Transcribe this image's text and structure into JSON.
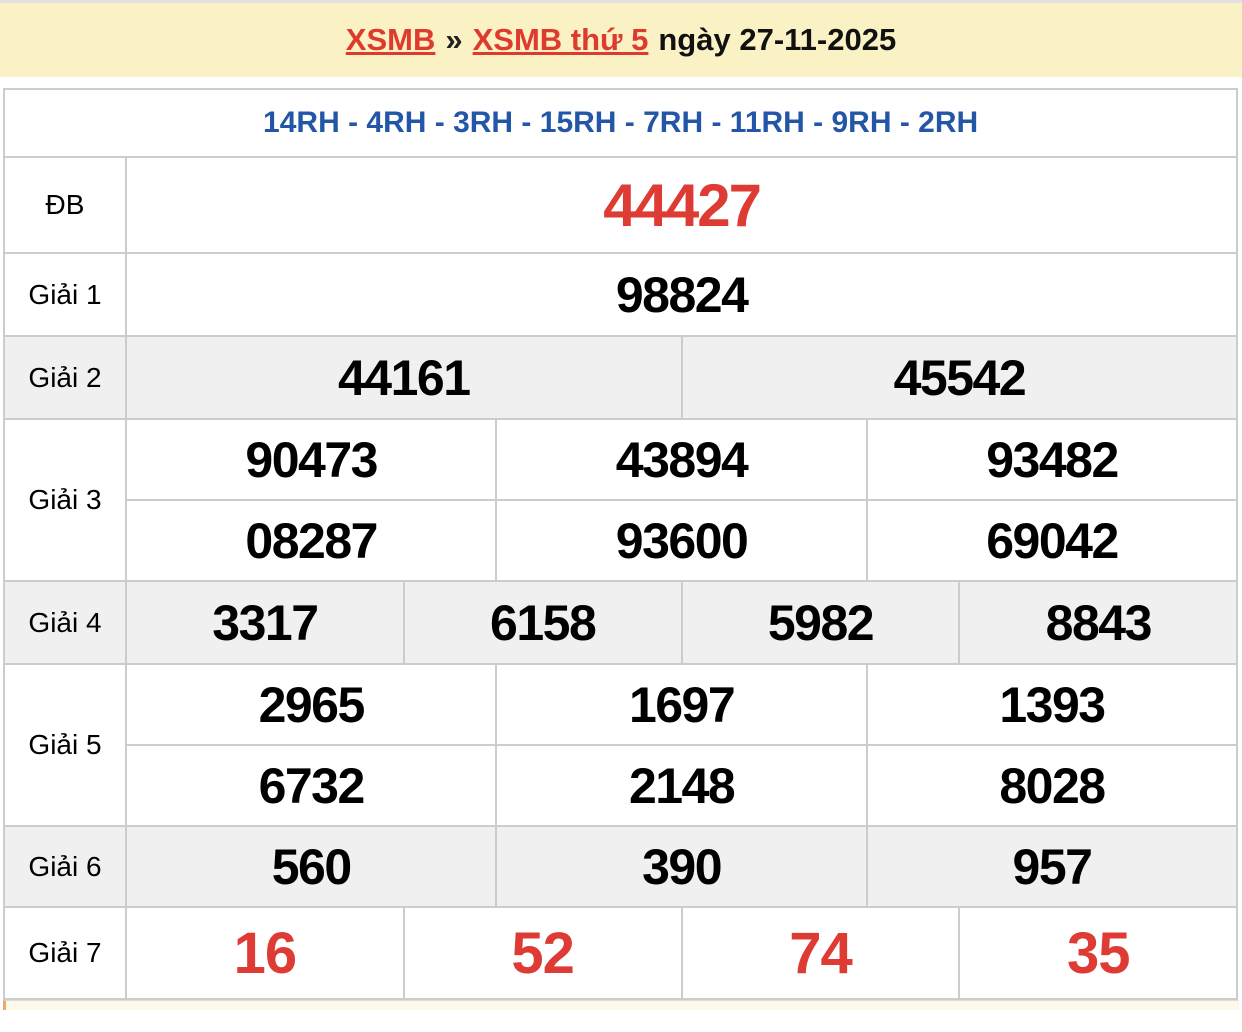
{
  "breadcrumb": {
    "link1": "XSMB",
    "separator": "»",
    "link2": "XSMB thứ 5",
    "date_text": "ngày 27-11-2025"
  },
  "codes_line": {
    "text": "14RH - 4RH - 3RH - 15RH - 7RH - 11RH - 9RH - 2RH"
  },
  "results": {
    "rows": [
      {
        "label": "ĐB",
        "values": [
          "44427"
        ]
      },
      {
        "label": "Giải 1",
        "values": [
          "98824"
        ]
      },
      {
        "label": "Giải 2",
        "values": [
          "44161",
          "45542"
        ]
      },
      {
        "label": "Giải 3",
        "values": [
          "90473",
          "43894",
          "93482",
          "08287",
          "93600",
          "69042"
        ]
      },
      {
        "label": "Giải 4",
        "values": [
          "3317",
          "6158",
          "5982",
          "8843"
        ]
      },
      {
        "label": "Giải 5",
        "values": [
          "2965",
          "1697",
          "1393",
          "6732",
          "2148",
          "8028"
        ]
      },
      {
        "label": "Giải 6",
        "values": [
          "560",
          "390",
          "957"
        ]
      },
      {
        "label": "Giải 7",
        "values": [
          "16",
          "52",
          "74",
          "35"
        ]
      }
    ]
  },
  "colors": {
    "accent_red": "#dd3b33",
    "link_red": "#de3a2d",
    "accent_blue": "#2456a8",
    "header_bg": "#faf1c4",
    "alt_row_bg": "#f0f0f0",
    "border": "#cccccc"
  }
}
